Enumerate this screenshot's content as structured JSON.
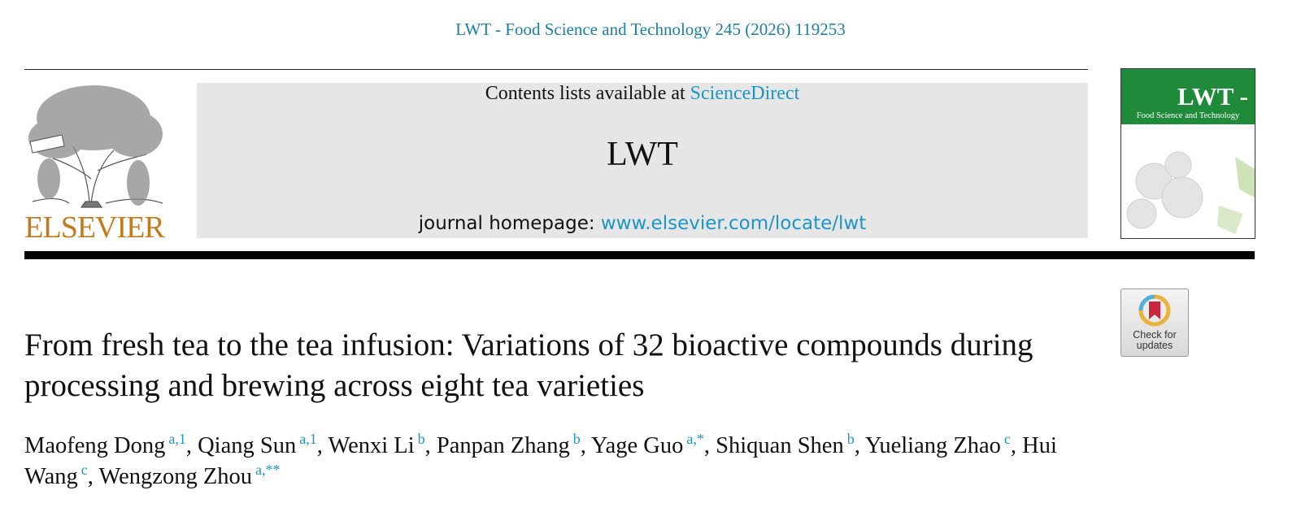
{
  "header": {
    "citation": "LWT - Food Science and Technology 245 (2026) 119253",
    "publisher": "ELSEVIER",
    "contents_prefix": "Contents lists available at",
    "contents_link": "ScienceDirect",
    "journal": "LWT",
    "homepage_prefix": "journal homepage:",
    "homepage_link": "www.elsevier.com/locate/lwt",
    "cover_title": "LWT -",
    "cover_subtitle": "Food Science and Technology",
    "badge": "Check for updates"
  },
  "article": {
    "title": "From fresh tea to the tea infusion: Variations of 32 bioactive compounds during processing and brewing across eight tea varieties",
    "author_separator": ",",
    "authors": [
      {
        "name": "Maofeng Dong",
        "affiliation": "a,1"
      },
      {
        "name": "Qiang Sun",
        "affiliation": "a,1"
      },
      {
        "name": "Wenxi Li",
        "affiliation": "b"
      },
      {
        "name": "Panpan Zhang",
        "affiliation": "b"
      },
      {
        "name": "Yage Guo",
        "affiliation": "a,*"
      },
      {
        "name": "Shiquan Shen",
        "affiliation": "b"
      },
      {
        "name": "Yueliang Zhao",
        "affiliation": "c"
      },
      {
        "name": "Hui Wang",
        "affiliation": "c"
      },
      {
        "name": "Wengzong Zhou",
        "affiliation": "a,**"
      }
    ]
  }
}
